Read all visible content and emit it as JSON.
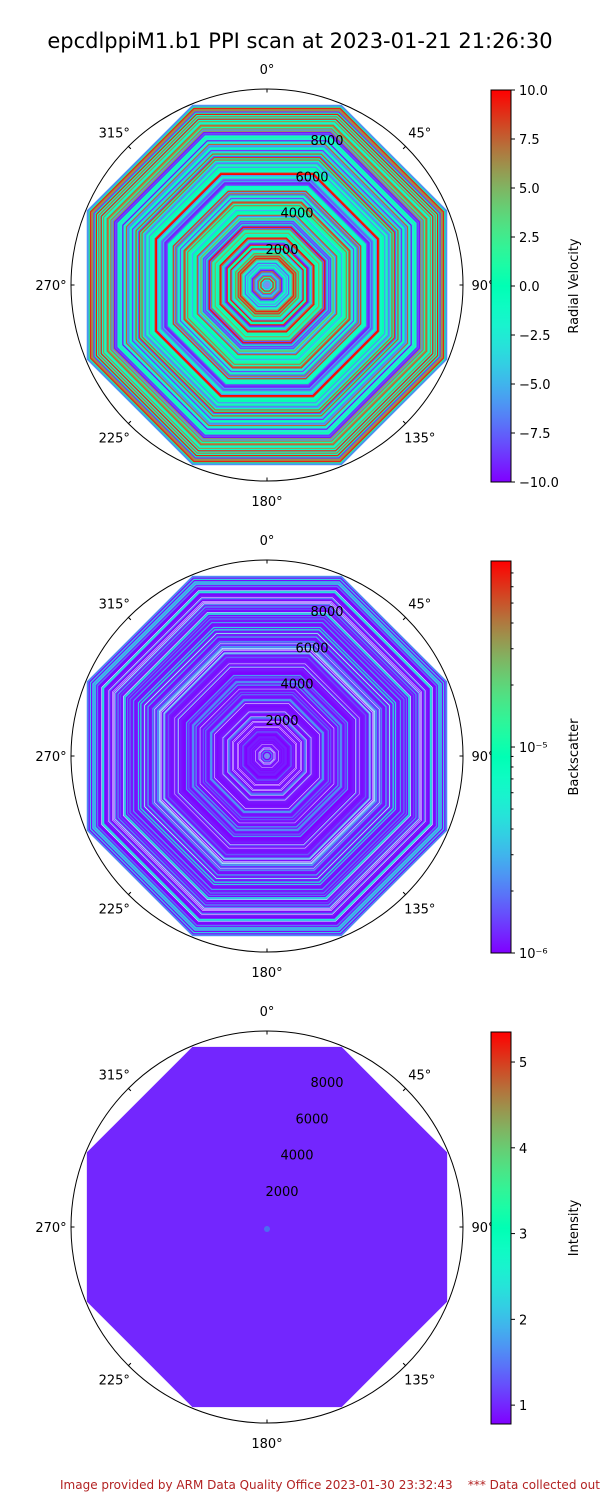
{
  "title": "epcdlppiM1.b1 PPI scan at 2023-01-21 21:26:30",
  "footer": {
    "credit": "Image provided by ARM Data Quality Office 2023-01-30 23:32:43",
    "note": "*** Data collected outside"
  },
  "chart_data": [
    {
      "type": "heatmap",
      "projection": "polar",
      "theta_zero": "N",
      "theta_direction": "clockwise",
      "angle_ticks": [
        "0°",
        "45°",
        "90°",
        "135°",
        "180°",
        "225°",
        "270°",
        "315°"
      ],
      "radial_ticks": [
        "2000",
        "4000",
        "6000",
        "8000"
      ],
      "radial_tick_values": [
        2000,
        4000,
        6000,
        8000
      ],
      "rmax": 10000,
      "grid": false,
      "colormap": "rainbow",
      "pattern": "streaks",
      "dominant": "mixed",
      "colorbar": {
        "label": "Radial Velocity",
        "scale": "linear",
        "vmin": -10.0,
        "vmax": 10.0,
        "ticks": [
          -10.0,
          -7.5,
          -5.0,
          -2.5,
          0.0,
          2.5,
          5.0,
          7.5,
          10.0
        ],
        "tick_labels": [
          "−10.0",
          "−7.5",
          "−5.0",
          "−2.5",
          "0.0",
          "2.5",
          "5.0",
          "7.5",
          "10.0"
        ]
      }
    },
    {
      "type": "heatmap",
      "projection": "polar",
      "theta_zero": "N",
      "theta_direction": "clockwise",
      "angle_ticks": [
        "0°",
        "45°",
        "90°",
        "135°",
        "180°",
        "225°",
        "270°",
        "315°"
      ],
      "radial_ticks": [
        "2000",
        "4000",
        "6000",
        "8000"
      ],
      "radial_tick_values": [
        2000,
        4000,
        6000,
        8000
      ],
      "rmax": 10000,
      "grid": false,
      "colormap": "rainbow",
      "pattern": "streaks",
      "dominant": "low",
      "colorbar": {
        "label": "Backscatter",
        "scale": "log",
        "vmin": 1e-06,
        "vmax": 8e-05,
        "ticks": [
          1e-06,
          1e-05
        ],
        "tick_labels": [
          "10⁻⁶",
          "10⁻⁵"
        ]
      }
    },
    {
      "type": "heatmap",
      "projection": "polar",
      "theta_zero": "N",
      "theta_direction": "clockwise",
      "angle_ticks": [
        "0°",
        "45°",
        "90°",
        "135°",
        "180°",
        "225°",
        "270°",
        "315°"
      ],
      "radial_ticks": [
        "2000",
        "4000",
        "6000",
        "8000"
      ],
      "radial_tick_values": [
        2000,
        4000,
        6000,
        8000
      ],
      "rmax": 10000,
      "grid": false,
      "colormap": "rainbow",
      "pattern": "uniform",
      "uniform_value": 1.0,
      "colorbar": {
        "label": "Intensity",
        "scale": "linear",
        "vmin": 0.78,
        "vmax": 5.35,
        "ticks": [
          1,
          2,
          3,
          4,
          5
        ],
        "tick_labels": [
          "1",
          "2",
          "3",
          "4",
          "5"
        ]
      }
    }
  ]
}
